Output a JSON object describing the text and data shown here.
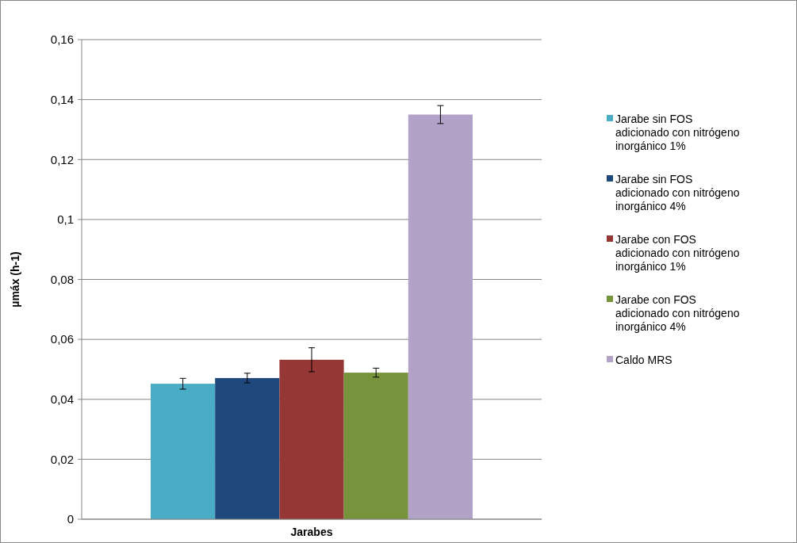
{
  "chart_data": {
    "type": "bar",
    "xlabel": "Jarabes",
    "ylabel": "µmáx (h-1)",
    "categories": [
      null
    ],
    "series": [
      {
        "name": "Jarabe sin FOS adicionado con nitrógeno inorgánico 1%",
        "color": "#4bacc6",
        "values": [
          0.0452
        ],
        "errors": [
          0.0018
        ]
      },
      {
        "name": "Jarabe sin FOS adicionado con nitrógeno inorgánico 4%",
        "color": "#1f497d",
        "values": [
          0.0471
        ],
        "errors": [
          0.0016
        ]
      },
      {
        "name": "Jarabe con FOS adicionado con nitrógeno inorgánico 1%",
        "color": "#953735",
        "values": [
          0.0532
        ],
        "errors": [
          0.004
        ]
      },
      {
        "name": "Jarabe con FOS adicionado con nitrógeno inorgánico 4%",
        "color": "#77933c",
        "values": [
          0.0489
        ],
        "errors": [
          0.0015
        ]
      },
      {
        "name": "Caldo MRS",
        "color": "#b3a2c7",
        "values": [
          0.135
        ],
        "errors": [
          0.003
        ]
      }
    ],
    "ylim": [
      0,
      0.16
    ],
    "yticks": [
      {
        "value": 0,
        "label": "0"
      },
      {
        "value": 0.02,
        "label": "0,02"
      },
      {
        "value": 0.04,
        "label": "0,04"
      },
      {
        "value": 0.06,
        "label": "0,06"
      },
      {
        "value": 0.08,
        "label": "0,08"
      },
      {
        "value": 0.1,
        "label": "0,1"
      },
      {
        "value": 0.12,
        "label": "0,12"
      },
      {
        "value": 0.14,
        "label": "0,14"
      },
      {
        "value": 0.16,
        "label": "0,16"
      }
    ],
    "grid": "y",
    "legend": "right"
  }
}
